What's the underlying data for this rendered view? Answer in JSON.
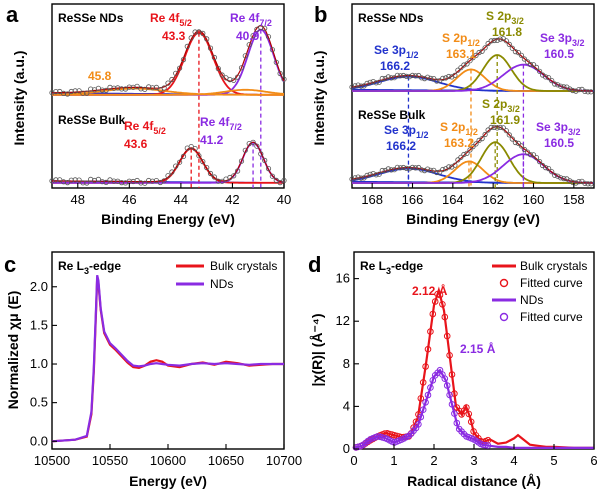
{
  "colors": {
    "red": "#e8141b",
    "purple": "#8a2be2",
    "orange": "#f28c17",
    "olive": "#8a8a00",
    "blue": "#2233cc",
    "raw": "#555555"
  },
  "chart_data": [
    {
      "panel": "a",
      "type": "line",
      "xlabel": "Binding Energy (eV)",
      "ylabel": "Intensity (a.u.)",
      "xlim": [
        49,
        40
      ],
      "xreversed": true,
      "xticks": [
        "48",
        "46",
        "44",
        "42",
        "40"
      ],
      "annotations": {
        "nd_label": "ReSSe NDs",
        "bulk_label": "ReSSe Bulk",
        "nd_re52_name": "Re 4f",
        "nd_re52_sub": "5/2",
        "nd_re52_value": "43.3",
        "nd_re72_name": "Re 4f",
        "nd_re72_sub": "7/2",
        "nd_re72_value": "40.9",
        "nd_extra_value": "45.8",
        "bulk_re52_name": "Re 4f",
        "bulk_re52_sub": "5/2",
        "bulk_re52_value": "43.6",
        "bulk_re72_name": "Re 4f",
        "bulk_re72_sub": "7/2",
        "bulk_re72_value": "41.2"
      },
      "nd_peaks": [
        {
          "center": 43.3,
          "height": 1.0,
          "width": 0.55,
          "color": "red"
        },
        {
          "center": 40.9,
          "height": 1.05,
          "width": 0.5,
          "color": "purple"
        },
        {
          "center": 45.8,
          "height": 0.1,
          "width": 1.2,
          "color": "orange"
        },
        {
          "center": 41.5,
          "height": 0.08,
          "width": 0.8,
          "color": "orange"
        }
      ],
      "bulk_peaks": [
        {
          "center": 43.6,
          "height": 0.55,
          "width": 0.45,
          "color": "red"
        },
        {
          "center": 41.2,
          "height": 0.65,
          "width": 0.4,
          "color": "purple"
        }
      ]
    },
    {
      "panel": "b",
      "type": "line",
      "xlabel": "Binding Energy (eV)",
      "ylabel": "Intensity (a.u.)",
      "xlim": [
        169,
        157
      ],
      "xreversed": true,
      "xticks": [
        "168",
        "166",
        "164",
        "162",
        "160",
        "158"
      ],
      "annotations": {
        "nd_label": "ReSSe NDs",
        "bulk_label": "ReSSe Bulk",
        "nd_se1_name": "Se 3p",
        "nd_se1_sub": "1/2",
        "nd_se1_value": "166.2",
        "nd_s1_name": "S 2p",
        "nd_s1_sub": "1/2",
        "nd_s1_value": "163.1",
        "nd_s3_name": "S 2p",
        "nd_s3_sub": "3/2",
        "nd_s3_value": "161.8",
        "nd_se3_name": "Se 3p",
        "nd_se3_sub": "3/2",
        "nd_se3_value": "160.5",
        "bulk_se1_name": "Se 3p",
        "bulk_se1_sub": "1/2",
        "bulk_se1_value": "166.2",
        "bulk_s1_name": "S 2p",
        "bulk_s1_sub": "1/2",
        "bulk_s1_value": "163.2",
        "bulk_s3_name": "S 2p",
        "bulk_s3_sub": "3/2",
        "bulk_s3_value": "161.9",
        "bulk_se3_name": "Se 3p",
        "bulk_se3_sub": "3/2",
        "bulk_se3_value": "160.5"
      },
      "nd_peaks": [
        {
          "center": 166.2,
          "height": 0.3,
          "width": 1.5,
          "color": "blue"
        },
        {
          "center": 163.1,
          "height": 0.45,
          "width": 0.7,
          "color": "orange"
        },
        {
          "center": 161.8,
          "height": 0.75,
          "width": 0.7,
          "color": "olive"
        },
        {
          "center": 160.5,
          "height": 0.55,
          "width": 1.0,
          "color": "purple"
        }
      ],
      "bulk_peaks": [
        {
          "center": 166.2,
          "height": 0.3,
          "width": 1.5,
          "color": "blue"
        },
        {
          "center": 163.2,
          "height": 0.45,
          "width": 0.7,
          "color": "orange"
        },
        {
          "center": 161.9,
          "height": 0.85,
          "width": 0.7,
          "color": "olive"
        },
        {
          "center": 160.5,
          "height": 0.6,
          "width": 1.0,
          "color": "purple"
        }
      ]
    },
    {
      "panel": "c",
      "type": "line",
      "xlabel": "Energy (eV)",
      "ylabel": "Normalized χμ (E)",
      "xlim": [
        10500,
        10700
      ],
      "ylim": [
        -0.1,
        2.45
      ],
      "xticks": [
        10500,
        10550,
        10600,
        10650,
        10700
      ],
      "yticks": [
        "0.0",
        "0.5",
        "1.0",
        "1.5",
        "2.0"
      ],
      "edge_label": "Re L",
      "edge_sub": "3",
      "edge_suffix": "-edge",
      "legend": [
        "Bulk crystals",
        "NDs"
      ],
      "series": [
        {
          "name": "Bulk crystals",
          "color": "red",
          "x": [
            10500,
            10520,
            10530,
            10534,
            10536,
            10538,
            10539,
            10540,
            10542,
            10545,
            10550,
            10555,
            10560,
            10565,
            10570,
            10575,
            10580,
            10585,
            10590,
            10595,
            10600,
            10610,
            10620,
            10630,
            10640,
            10650,
            10660,
            10670,
            10680,
            10690,
            10700
          ],
          "y": [
            0.0,
            0.02,
            0.06,
            0.35,
            0.9,
            1.7,
            2.12,
            2.05,
            1.7,
            1.4,
            1.25,
            1.18,
            1.1,
            1.02,
            0.96,
            0.95,
            0.98,
            1.03,
            1.05,
            1.03,
            0.98,
            0.96,
            1.0,
            1.02,
            0.99,
            1.03,
            1.01,
            0.98,
            0.99,
            1.0,
            1.0
          ]
        },
        {
          "name": "NDs",
          "color": "purple",
          "x": [
            10500,
            10520,
            10530,
            10534,
            10536,
            10538,
            10539,
            10540,
            10542,
            10545,
            10550,
            10555,
            10560,
            10565,
            10570,
            10575,
            10580,
            10585,
            10590,
            10595,
            10600,
            10610,
            10620,
            10630,
            10640,
            10650,
            10660,
            10670,
            10680,
            10690,
            10700
          ],
          "y": [
            0.0,
            0.02,
            0.07,
            0.38,
            0.95,
            1.75,
            2.15,
            2.08,
            1.72,
            1.42,
            1.27,
            1.2,
            1.12,
            1.04,
            0.98,
            0.97,
            0.98,
            1.0,
            1.01,
            1.0,
            0.99,
            0.98,
            1.0,
            1.01,
            1.0,
            1.01,
            1.0,
            0.99,
            1.0,
            1.0,
            1.0
          ]
        }
      ]
    },
    {
      "panel": "d",
      "type": "line",
      "xlabel": "Radical distance (Å)",
      "ylabel": "|χ(R)| (Å⁻⁴)",
      "xlim": [
        0,
        6
      ],
      "ylim": [
        0,
        18.5
      ],
      "xticks": [
        "0",
        "1",
        "2",
        "3",
        "4",
        "5",
        "6"
      ],
      "yticks": [
        "0",
        "4",
        "8",
        "12",
        "16"
      ],
      "edge_label": "Re L",
      "edge_sub": "3",
      "edge_suffix": "-edge",
      "legend": [
        "Bulk crystals",
        "Fitted curve",
        "NDs",
        "Fitted curve"
      ],
      "annotations": {
        "bulk_peak": "2.12 Å",
        "nd_peak": "2.15 Å"
      },
      "series": [
        {
          "name": "Bulk crystals",
          "color": "red",
          "x": [
            0,
            0.2,
            0.4,
            0.6,
            0.8,
            1.0,
            1.2,
            1.4,
            1.6,
            1.8,
            2.0,
            2.12,
            2.25,
            2.4,
            2.55,
            2.7,
            2.8,
            2.9,
            3.0,
            3.2,
            3.4,
            3.6,
            3.8,
            4.0,
            4.1,
            4.2,
            4.4,
            4.6,
            4.8,
            5.0,
            5.5,
            6.0
          ],
          "y": [
            0.1,
            0.3,
            0.8,
            1.2,
            1.5,
            1.3,
            1.1,
            1.2,
            3.0,
            8.0,
            13.5,
            14.9,
            13.0,
            8.5,
            4.0,
            3.2,
            4.0,
            3.0,
            1.5,
            0.6,
            0.9,
            0.5,
            0.6,
            1.0,
            1.3,
            1.0,
            0.4,
            0.3,
            0.2,
            0.2,
            0.1,
            0.1
          ]
        },
        {
          "name": "NDs",
          "color": "purple",
          "x": [
            0,
            0.2,
            0.4,
            0.6,
            0.8,
            1.0,
            1.2,
            1.4,
            1.6,
            1.8,
            2.0,
            2.15,
            2.3,
            2.45,
            2.6,
            2.8,
            3.0,
            3.2,
            3.4,
            3.6,
            3.8,
            4.0,
            4.5,
            5.0,
            5.5,
            6.0
          ],
          "y": [
            0.1,
            0.3,
            0.9,
            1.2,
            1.0,
            0.6,
            0.9,
            1.3,
            2.2,
            4.5,
            6.8,
            7.4,
            6.4,
            4.2,
            2.0,
            1.2,
            0.9,
            0.4,
            0.3,
            0.2,
            0.2,
            0.1,
            0.1,
            0.1,
            0.1,
            0.1
          ]
        }
      ]
    }
  ]
}
